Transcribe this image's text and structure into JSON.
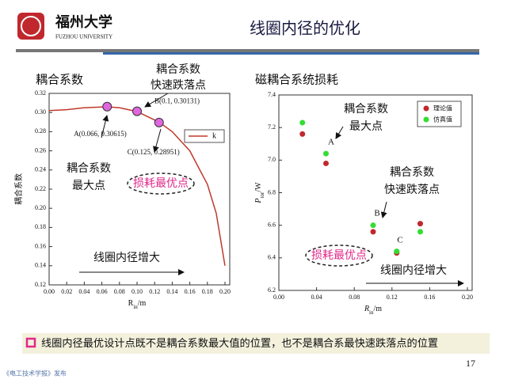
{
  "slide": {
    "title": "线圈内径的优化",
    "logo_cn": "福州大学",
    "logo_en": "FUZHOU UNIVERSITY",
    "bullet": "线圈内径最优设计点既不是耦合系数最大值的位置，也不是耦合系最快速跌落点的位置",
    "page": "17",
    "source": "《电工技术学报》发布"
  },
  "chart_data": [
    {
      "type": "line",
      "heading": "耦合系数",
      "ylabel": "耦合系数",
      "xlabel": [
        "R",
        "in",
        "/m"
      ],
      "x": [
        0,
        0.02,
        0.04,
        0.066,
        0.08,
        0.1,
        0.125,
        0.14,
        0.16,
        0.18,
        0.19,
        0.2
      ],
      "series": [
        {
          "name": "k",
          "color": "#c0392b",
          "values": [
            0.302,
            0.303,
            0.305,
            0.306,
            0.305,
            0.301,
            0.29,
            0.28,
            0.26,
            0.225,
            0.195,
            0.14
          ]
        }
      ],
      "points": [
        {
          "label": "A(0.066, 0.30615)",
          "x": 0.066,
          "y": 0.30615
        },
        {
          "label": "B(0.1, 0.30131)",
          "x": 0.1,
          "y": 0.30131
        },
        {
          "label": "C(0.125, 0.28951)",
          "x": 0.125,
          "y": 0.28951
        }
      ],
      "point_color": "#e066e0",
      "xlim": [
        0,
        0.2
      ],
      "ylim": [
        0.12,
        0.32
      ],
      "xticks": [
        {
          "value": 0,
          "label": "0.00"
        },
        0.02,
        0.04,
        0.06,
        0.08,
        {
          "value": 0.1,
          "label": "0.10"
        },
        0.12,
        0.14,
        0.16,
        0.18,
        {
          "value": 0.2,
          "label": "0.20"
        }
      ],
      "yticks": [
        0.12,
        0.14,
        0.16,
        0.18,
        {
          "value": 0.2,
          "label": "0.20"
        },
        0.22,
        0.24,
        0.26,
        0.28,
        {
          "value": 0.3,
          "label": "0.30"
        },
        0.32
      ],
      "annotations": {
        "drop": [
          "耦合系数",
          "快速跌落点"
        ],
        "max": [
          "耦合系数",
          "最大点"
        ],
        "optimum": "损耗最优点",
        "increase": "线圈内径增大"
      }
    },
    {
      "type": "scatter",
      "heading": "磁耦合系统损耗",
      "ylabel": [
        "P",
        "tor",
        "/W"
      ],
      "xlabel": [
        "R",
        "in",
        "/m"
      ],
      "series": [
        {
          "name": "理论值",
          "color": "#c0282d",
          "x": [
            0.025,
            0.05,
            0.1,
            0.125,
            0.15
          ],
          "values": [
            7.16,
            6.98,
            6.56,
            6.43,
            6.61
          ]
        },
        {
          "name": "仿真值",
          "color": "#33dd33",
          "x": [
            0.025,
            0.05,
            0.1,
            0.125,
            0.15
          ],
          "values": [
            7.23,
            7.04,
            6.6,
            6.44,
            6.56
          ]
        }
      ],
      "xlim": [
        0,
        0.2
      ],
      "ylim": [
        6.2,
        7.4
      ],
      "xticks": [
        {
          "value": 0,
          "label": "0.00"
        },
        0.04,
        0.08,
        0.12,
        0.16,
        {
          "value": 0.2,
          "label": "0.20"
        }
      ],
      "yticks": [
        6.2,
        6.4,
        6.6,
        6.8,
        {
          "value": 7,
          "label": "7.0"
        },
        7.2,
        7.4
      ],
      "annotations": {
        "letters": [
          "A",
          "B",
          "C"
        ],
        "max": [
          "耦合系数",
          "最大点"
        ],
        "drop": [
          "耦合系数",
          "快速跌落点"
        ],
        "optimum": "损耗最优点",
        "increase": "线圈内径增大"
      }
    }
  ]
}
